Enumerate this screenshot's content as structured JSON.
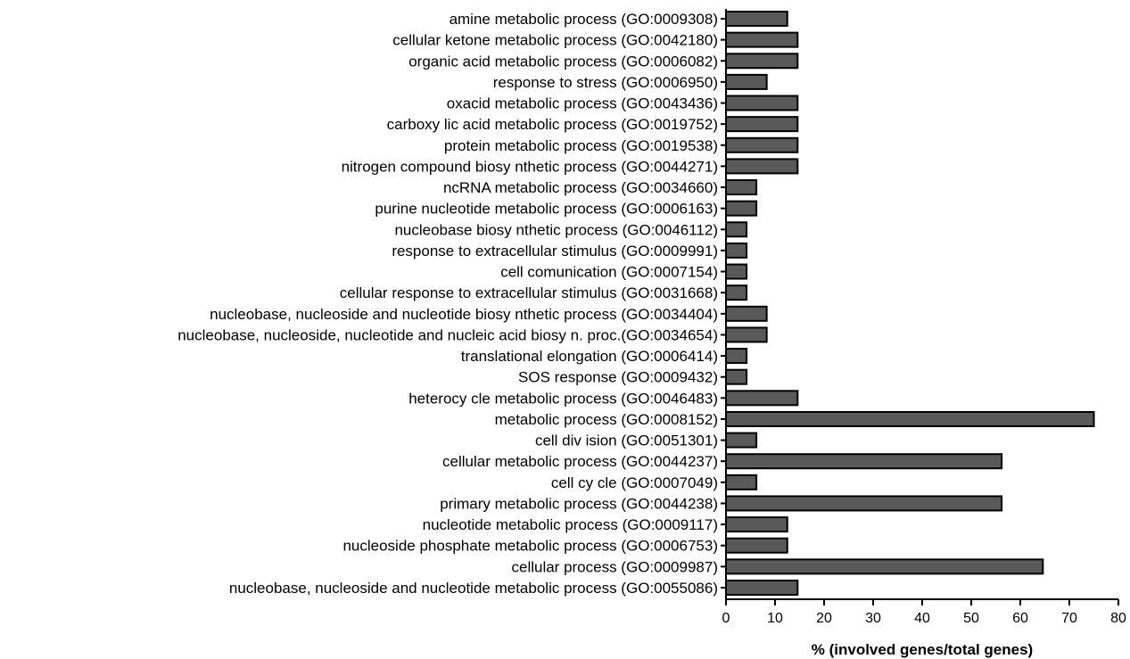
{
  "chart_data": {
    "type": "bar",
    "orientation": "horizontal",
    "title": "",
    "xlabel": "% (involved genes/total genes)",
    "ylabel": "",
    "xlim": [
      0,
      80
    ],
    "x_ticks": [
      0,
      10,
      20,
      30,
      40,
      50,
      60,
      70,
      80
    ],
    "grid": false,
    "bar_color": "#595959",
    "categories": [
      "amine metabolic process (GO:0009308)",
      "cellular ketone metabolic process (GO:0042180)",
      "organic acid metabolic process (GO:0006082)",
      "response to stress (GO:0006950)",
      "oxacid metabolic process (GO:0043436)",
      "carboxy lic acid metabolic process (GO:0019752)",
      "protein metabolic process (GO:0019538)",
      "nitrogen compound biosy nthetic process (GO:0044271)",
      "ncRNA metabolic process (GO:0034660)",
      "purine nucleotide metabolic process (GO:0006163)",
      "nucleobase biosy nthetic process (GO:0046112)",
      "response to extracellular stimulus (GO:0009991)",
      "cell comunication (GO:0007154)",
      "cellular response to extracellular stimulus (GO:0031668)",
      "nucleobase, nucleoside and nucleotide biosy nthetic process (GO:0034404)",
      "nucleobase, nucleoside, nucleotide and nucleic acid biosy n. proc.(GO:0034654)",
      "translational elongation (GO:0006414)",
      "SOS response (GO:0009432)",
      "heterocy cle metabolic process (GO:0046483)",
      "metabolic process (GO:0008152)",
      "cell div ision (GO:0051301)",
      "cellular metabolic process (GO:0044237)",
      "cell cy cle (GO:0007049)",
      "primary metabolic process (GO:0044238)",
      "nucleotide metabolic process (GO:0009117)",
      "nucleoside phosphate metabolic process (GO:0006753)",
      "cellular process (GO:0009987)",
      "nucleobase, nucleoside and nucleotide metabolic process (GO:0055086)"
    ],
    "values": [
      12.5,
      14.6,
      14.6,
      8.3,
      14.6,
      14.6,
      14.6,
      14.6,
      6.2,
      6.2,
      4.2,
      4.2,
      4.2,
      4.2,
      8.3,
      8.3,
      4.2,
      4.2,
      14.6,
      75.0,
      6.2,
      56.2,
      6.2,
      56.2,
      12.5,
      12.5,
      64.6,
      14.6
    ]
  }
}
